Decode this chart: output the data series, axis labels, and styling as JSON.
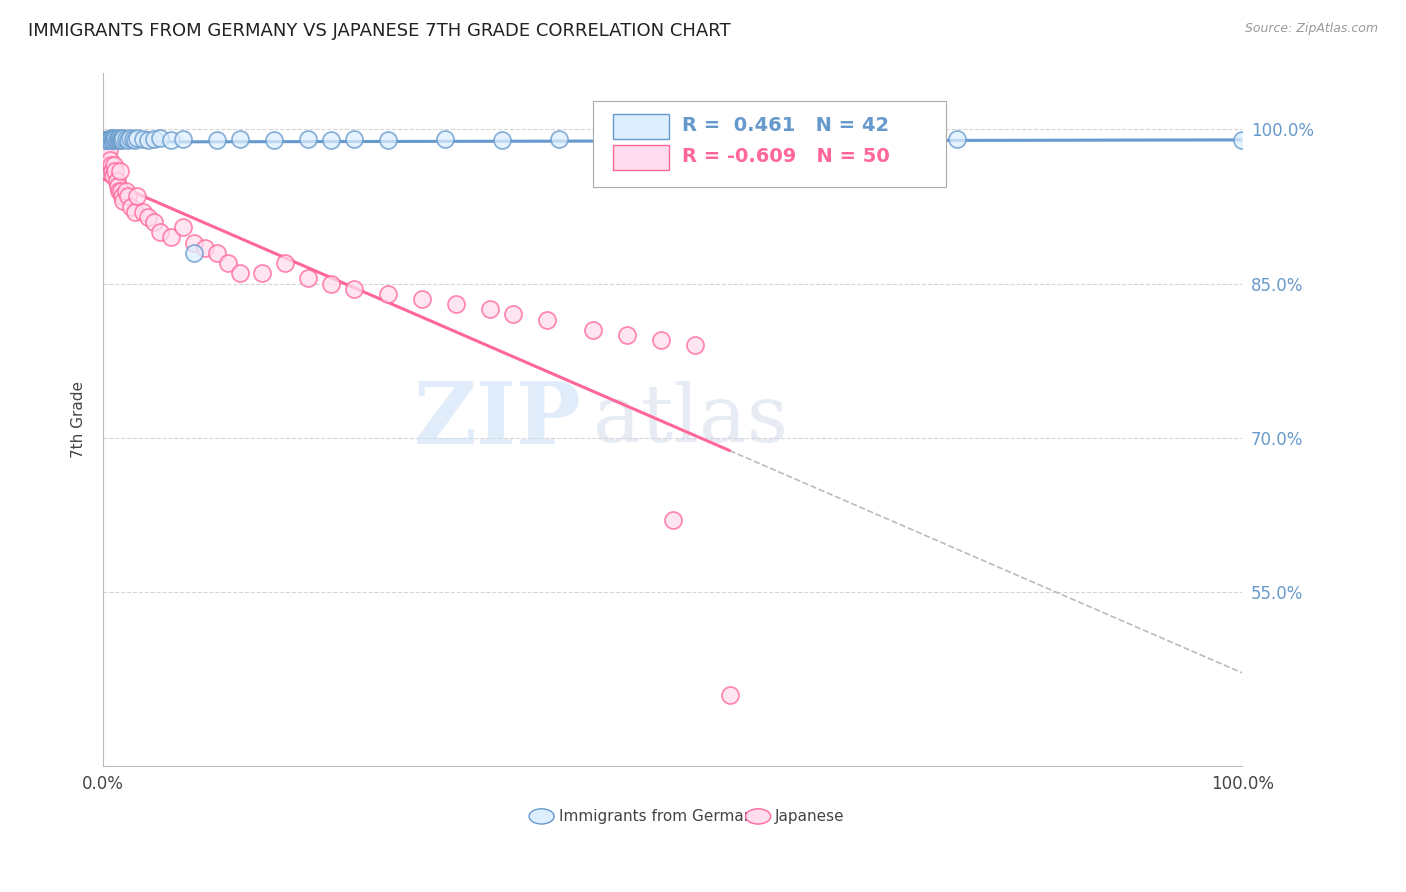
{
  "title": "IMMIGRANTS FROM GERMANY VS JAPANESE 7TH GRADE CORRELATION CHART",
  "source": "Source: ZipAtlas.com",
  "ylabel": "7th Grade",
  "ytick_labels": [
    "100.0%",
    "85.0%",
    "70.0%",
    "55.0%"
  ],
  "ytick_values": [
    1.0,
    0.85,
    0.7,
    0.55
  ],
  "xlim": [
    0.0,
    1.0
  ],
  "ylim": [
    0.38,
    1.055
  ],
  "legend_blue_label": "Immigrants from Germany",
  "legend_pink_label": "Japanese",
  "R_blue": 0.461,
  "N_blue": 42,
  "R_pink": -0.609,
  "N_pink": 50,
  "blue_color": "#6699CC",
  "pink_color": "#FF6699",
  "watermark_zip": "ZIP",
  "watermark_atlas": "atlas",
  "background_color": "#FFFFFF",
  "grid_color": "#CCCCCC",
  "blue_scatter_x": [
    0.002,
    0.004,
    0.005,
    0.006,
    0.007,
    0.008,
    0.009,
    0.01,
    0.011,
    0.012,
    0.013,
    0.014,
    0.015,
    0.016,
    0.017,
    0.018,
    0.02,
    0.022,
    0.024,
    0.026,
    0.028,
    0.03,
    0.035,
    0.04,
    0.045,
    0.05,
    0.06,
    0.07,
    0.08,
    0.1,
    0.12,
    0.15,
    0.18,
    0.2,
    0.22,
    0.25,
    0.3,
    0.35,
    0.4,
    0.6,
    0.75,
    1.0
  ],
  "blue_scatter_y": [
    0.99,
    0.99,
    0.991,
    0.99,
    0.992,
    0.991,
    0.99,
    0.992,
    0.991,
    0.99,
    0.991,
    0.992,
    0.99,
    0.991,
    0.99,
    0.992,
    0.991,
    0.99,
    0.992,
    0.991,
    0.99,
    0.992,
    0.991,
    0.99,
    0.991,
    0.992,
    0.99,
    0.991,
    0.88,
    0.99,
    0.991,
    0.99,
    0.991,
    0.99,
    0.991,
    0.99,
    0.991,
    0.99,
    0.991,
    0.99,
    0.991,
    0.99
  ],
  "pink_scatter_x": [
    0.002,
    0.003,
    0.004,
    0.005,
    0.006,
    0.007,
    0.008,
    0.009,
    0.01,
    0.011,
    0.012,
    0.013,
    0.014,
    0.015,
    0.016,
    0.017,
    0.018,
    0.02,
    0.022,
    0.025,
    0.028,
    0.03,
    0.035,
    0.04,
    0.045,
    0.05,
    0.06,
    0.07,
    0.08,
    0.09,
    0.1,
    0.11,
    0.12,
    0.14,
    0.16,
    0.18,
    0.2,
    0.22,
    0.25,
    0.28,
    0.31,
    0.34,
    0.36,
    0.39,
    0.43,
    0.46,
    0.49,
    0.5,
    0.52,
    0.55
  ],
  "pink_scatter_y": [
    0.985,
    0.99,
    0.975,
    0.98,
    0.97,
    0.965,
    0.96,
    0.955,
    0.965,
    0.96,
    0.95,
    0.945,
    0.94,
    0.96,
    0.94,
    0.935,
    0.93,
    0.94,
    0.935,
    0.925,
    0.92,
    0.935,
    0.92,
    0.915,
    0.91,
    0.9,
    0.895,
    0.905,
    0.89,
    0.885,
    0.88,
    0.87,
    0.86,
    0.86,
    0.87,
    0.855,
    0.85,
    0.845,
    0.84,
    0.835,
    0.83,
    0.825,
    0.82,
    0.815,
    0.805,
    0.8,
    0.795,
    0.62,
    0.79,
    0.45
  ]
}
